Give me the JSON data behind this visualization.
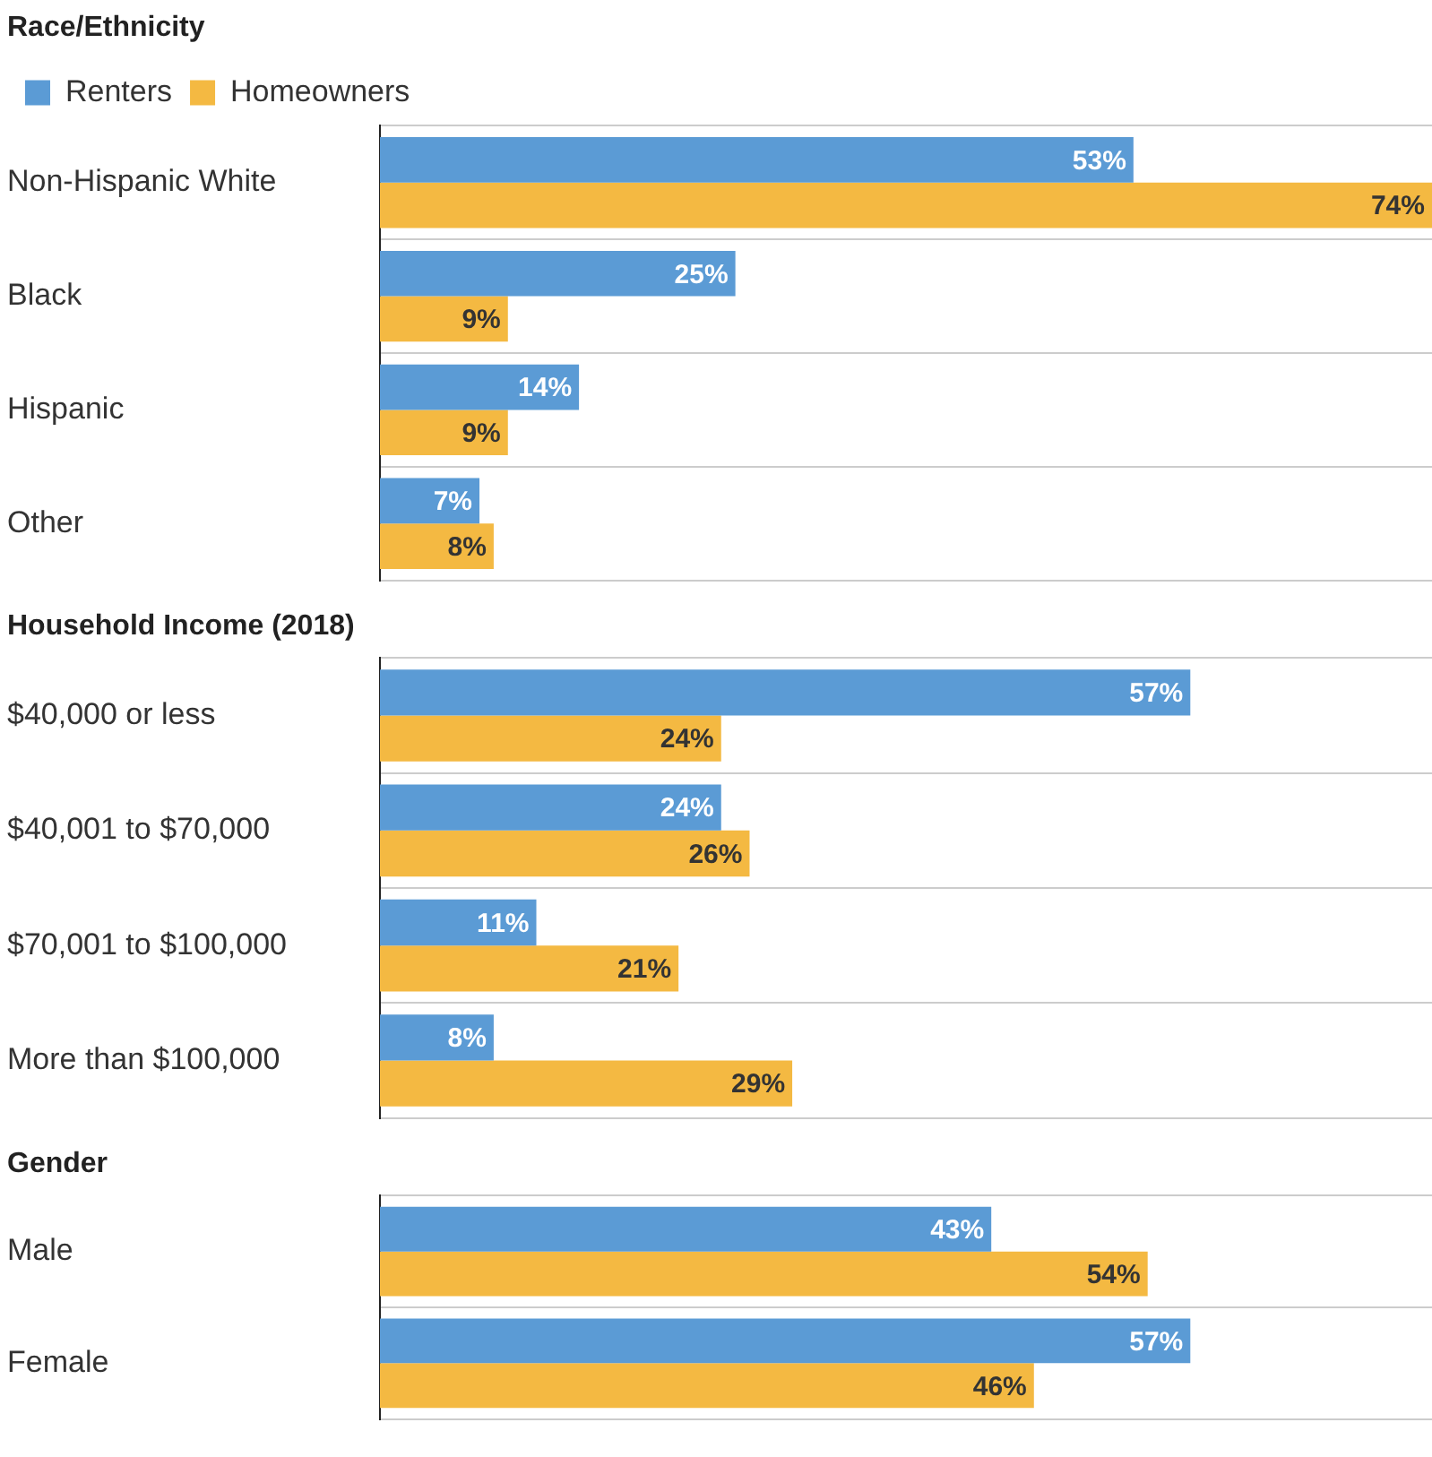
{
  "chart_data": [
    {
      "type": "bar",
      "orientation": "horizontal",
      "title": "Race/Ethnicity",
      "legend": "top left",
      "grid": "y",
      "categories": [
        "Non-Hispanic White",
        "Black",
        "Hispanic",
        "Other"
      ],
      "series": [
        {
          "name": "Renters",
          "color": "#5b9bd5",
          "values": [
            53,
            25,
            14,
            7
          ],
          "value_labels": [
            "53%",
            "25%",
            "14%",
            "7%"
          ]
        },
        {
          "name": "Homeowners",
          "color": "#f4b942",
          "values": [
            74,
            9,
            9,
            8
          ],
          "value_labels": [
            "74%",
            "9%",
            "9%",
            "8%"
          ]
        }
      ]
    },
    {
      "type": "bar",
      "orientation": "horizontal",
      "title": "Household Income (2018)",
      "grid": "y",
      "categories": [
        "$40,000 or less",
        "$40,001 to $70,000",
        "$70,001 to $100,000",
        "More than $100,000"
      ],
      "series": [
        {
          "color": "#5b9bd5",
          "values": [
            57,
            24,
            11,
            8
          ],
          "value_labels": [
            "57%",
            "24%",
            "11%",
            "8%"
          ]
        },
        {
          "color": "#f4b942",
          "values": [
            24,
            26,
            21,
            29
          ],
          "value_labels": [
            "24%",
            "26%",
            "21%",
            "29%"
          ]
        }
      ]
    },
    {
      "type": "bar",
      "orientation": "horizontal",
      "title": "Gender",
      "grid": "y",
      "categories": [
        "Male",
        "Female"
      ],
      "series": [
        {
          "color": "#5b9bd5",
          "values": [
            43,
            57
          ],
          "value_labels": [
            "43%",
            "57%"
          ]
        },
        {
          "color": "#f4b942",
          "values": [
            54,
            46
          ],
          "value_labels": [
            "54%",
            "46%"
          ]
        }
      ]
    }
  ]
}
